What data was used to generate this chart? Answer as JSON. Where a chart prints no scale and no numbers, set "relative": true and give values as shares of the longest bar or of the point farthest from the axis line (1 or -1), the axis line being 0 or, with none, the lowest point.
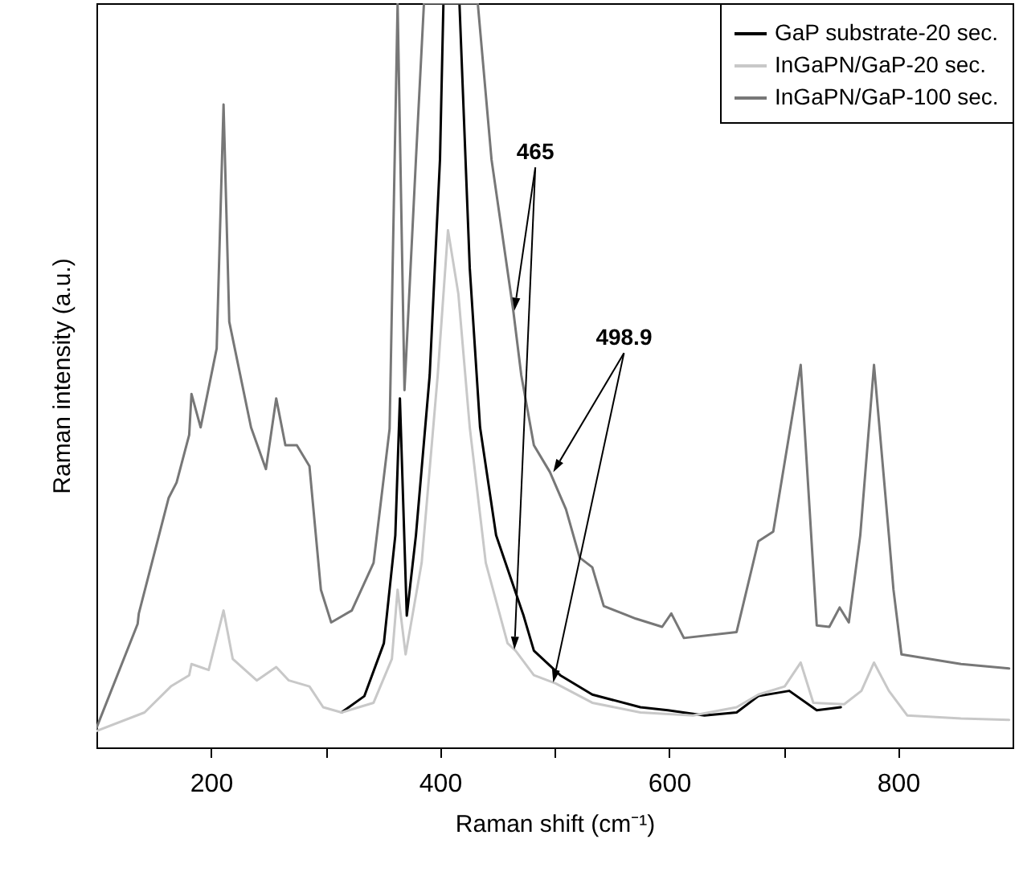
{
  "chart_data": {
    "type": "line",
    "relative": true,
    "xlabel": "Raman shift  (cm⁻¹)",
    "ylabel": "Raman intensity  (a.u.)",
    "xlim": [
      100,
      900
    ],
    "xticks": [
      200,
      {
        "value": 300,
        "label": null
      },
      400,
      {
        "value": 500,
        "label": null
      },
      600,
      {
        "value": 700,
        "label": null
      },
      800
    ],
    "grid": false,
    "legend": "top right",
    "line_style": "solid",
    "series": [
      {
        "name": "GaP substrate-20 sec.",
        "color": "#000000",
        "x": [
          314,
          334,
          351,
          361,
          365,
          371,
          379,
          391,
          400,
          403,
          417,
          426,
          435,
          449,
          473,
          482,
          505,
          533,
          575,
          599,
          631,
          659,
          678,
          705,
          729,
          750
        ],
        "values": [
          0.047,
          0.069,
          0.14,
          0.285,
          0.469,
          0.177,
          0.285,
          0.5,
          0.79,
          1.0,
          1.0,
          0.644,
          0.43,
          0.285,
          0.177,
          0.13,
          0.097,
          0.071,
          0.054,
          0.05,
          0.043,
          0.047,
          0.069,
          0.076,
          0.05,
          0.054
        ]
      },
      {
        "name": "InGaPN/GaP-20 sec.",
        "color": "#c8c8c8",
        "x": [
          100,
          142,
          165,
          181,
          183,
          198,
          211,
          219,
          240,
          257,
          268,
          286,
          298,
          314,
          342,
          358,
          363,
          370,
          384,
          398,
          407,
          416,
          426,
          440,
          459,
          466,
          482,
          501,
          533,
          575,
          621,
          659,
          678,
          701,
          715,
          726,
          753,
          768,
          779,
          792,
          808,
          855,
          897
        ],
        "values": [
          0.022,
          0.047,
          0.082,
          0.097,
          0.112,
          0.104,
          0.184,
          0.119,
          0.09,
          0.108,
          0.09,
          0.082,
          0.054,
          0.047,
          0.06,
          0.119,
          0.212,
          0.125,
          0.248,
          0.5,
          0.695,
          0.61,
          0.43,
          0.248,
          0.14,
          0.13,
          0.097,
          0.086,
          0.06,
          0.047,
          0.043,
          0.054,
          0.071,
          0.082,
          0.114,
          0.06,
          0.058,
          0.076,
          0.114,
          0.076,
          0.043,
          0.039,
          0.037
        ]
      },
      {
        "name": "InGaPN/GaP-100 sec.",
        "color": "#777777",
        "x": [
          100,
          136,
          137,
          163,
          170,
          181,
          183,
          191,
          205,
          211,
          216,
          235,
          248,
          257,
          265,
          275,
          286,
          296,
          305,
          323,
          342,
          356,
          363,
          369,
          379,
          386,
          433,
          445,
          464,
          471,
          482,
          496,
          510,
          522,
          533,
          543,
          571,
          594,
          602,
          613,
          659,
          678,
          691,
          715,
          729,
          740,
          749,
          757,
          767,
          779,
          792,
          796,
          803,
          855,
          897
        ],
        "values": [
          0.026,
          0.166,
          0.18,
          0.335,
          0.356,
          0.42,
          0.475,
          0.43,
          0.536,
          0.864,
          0.572,
          0.43,
          0.374,
          0.469,
          0.406,
          0.406,
          0.378,
          0.212,
          0.168,
          0.184,
          0.248,
          0.428,
          1.0,
          0.48,
          0.79,
          1.0,
          1.0,
          0.79,
          0.587,
          0.5,
          0.406,
          0.37,
          0.32,
          0.255,
          0.242,
          0.19,
          0.173,
          0.162,
          0.18,
          0.147,
          0.155,
          0.277,
          0.29,
          0.514,
          0.164,
          0.162,
          0.188,
          0.168,
          0.285,
          0.514,
          0.285,
          0.212,
          0.125,
          0.112,
          0.106
        ]
      }
    ],
    "annotations": [
      {
        "text": "465",
        "x": 465,
        "y": 0.587
      },
      {
        "text": "498.9",
        "x": 498.9,
        "y": 0.37
      }
    ]
  }
}
